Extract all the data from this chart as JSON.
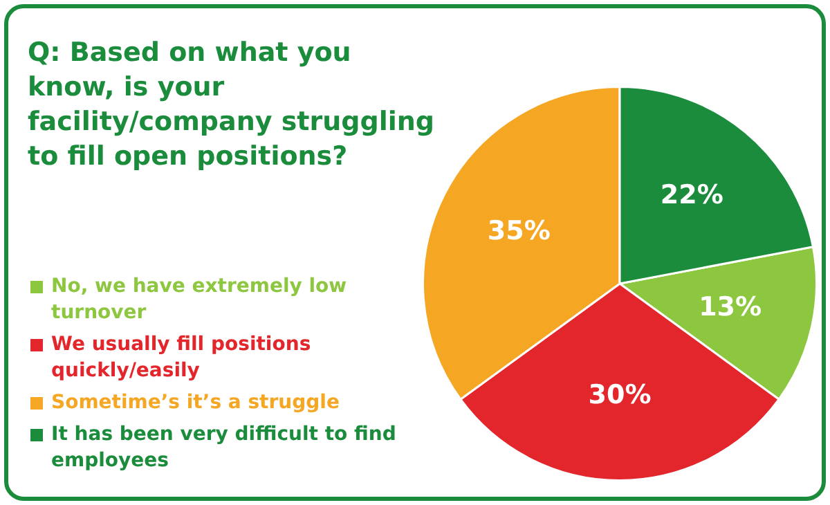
{
  "chart_data": {
    "type": "pie",
    "title": "Q: Based on what you know, is your facility/company struggling to fill open positions?",
    "categories": [
      "No, we have extremely low turnover",
      "We usually fill positions quickly/easily",
      "Sometime’s it’s a struggle",
      "It has been very difficult to find employees"
    ],
    "values": [
      13,
      30,
      35,
      22
    ],
    "colors": [
      "#8dc63f",
      "#e3262b",
      "#f5a623",
      "#1a8c3c"
    ],
    "value_labels": [
      "13%",
      "30%",
      "35%",
      "22%"
    ],
    "legend": "left"
  }
}
